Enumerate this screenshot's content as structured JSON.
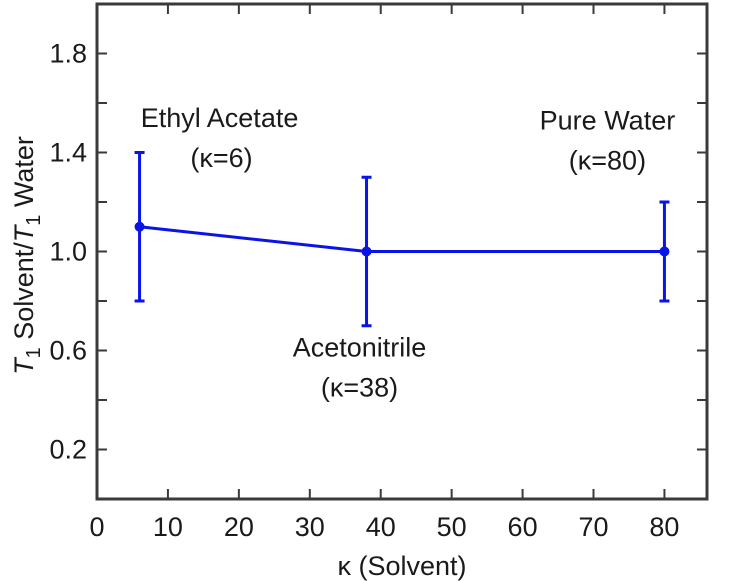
{
  "chart_data": {
    "type": "line",
    "title": "",
    "xlabel": "κ (Solvent)",
    "ylabel_parts": [
      "T",
      "1",
      " Solvent/",
      "T",
      "1",
      " Water"
    ],
    "xlim": [
      0,
      86
    ],
    "ylim": [
      0.0,
      2.0
    ],
    "xticks": [
      0,
      10,
      20,
      30,
      40,
      50,
      60,
      70,
      80
    ],
    "yticks": [
      0.2,
      0.6,
      1.0,
      1.4,
      1.8
    ],
    "ytick_labels": [
      "0.2",
      "0.6",
      "1.0",
      "1.4",
      "1.8"
    ],
    "grid": false,
    "series": [
      {
        "color": "#0a14e6",
        "points": [
          {
            "x": 6,
            "y": 1.1,
            "err_low": 0.8,
            "err_high": 1.4
          },
          {
            "x": 38,
            "y": 1.0,
            "err_low": 0.7,
            "err_high": 1.3
          },
          {
            "x": 80,
            "y": 1.0,
            "err_low": 0.8,
            "err_high": 1.2
          }
        ]
      }
    ],
    "annotations": [
      {
        "lines": [
          "Ethyl Acetate",
          "(κ=6)"
        ],
        "x": 6,
        "y": 1.1
      },
      {
        "lines": [
          "Acetonitrile",
          "(κ=38)"
        ],
        "x": 38,
        "y": 1.0
      },
      {
        "lines": [
          "Pure Water",
          "(κ=80)"
        ],
        "x": 80,
        "y": 1.0
      }
    ]
  }
}
